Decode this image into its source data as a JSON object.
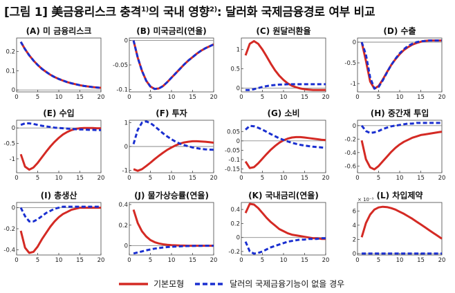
{
  "figure": {
    "title_prefix": "[그림 1] 美금융리스크 충격",
    "title_sup1": "1)",
    "title_mid": "의 국내 영향",
    "title_sup2": "2)",
    "title_suffix": ": 달러화 국제금융경로 여부 비교"
  },
  "colors": {
    "base": "#d42a24",
    "alt": "#1a2fd0",
    "zero": "#8a8a8a"
  },
  "legend": {
    "base_label": "기본모형",
    "alt_label": "달러의 국제금융기능이 없을 경우"
  },
  "chart_data": [
    {
      "type": "line",
      "title": "(A) 미 금융리스크",
      "xlim": [
        0,
        20
      ],
      "ylim": [
        -0.01,
        0.27
      ],
      "xticks": [
        0,
        5,
        10,
        15,
        20
      ],
      "yticks": [
        0,
        0.1,
        0.2
      ],
      "x": [
        1,
        2,
        3,
        4,
        5,
        6,
        7,
        8,
        9,
        10,
        11,
        12,
        13,
        14,
        15,
        16,
        17,
        18,
        19,
        20
      ],
      "series": [
        {
          "name": "기본모형",
          "values": [
            0.25,
            0.212,
            0.18,
            0.153,
            0.13,
            0.11,
            0.094,
            0.079,
            0.067,
            0.057,
            0.049,
            0.041,
            0.035,
            0.03,
            0.025,
            0.021,
            0.018,
            0.015,
            0.013,
            0.011
          ]
        },
        {
          "name": "달러의 국제금융기능이 없을 경우",
          "values": [
            0.25,
            0.212,
            0.18,
            0.153,
            0.13,
            0.11,
            0.094,
            0.079,
            0.067,
            0.057,
            0.049,
            0.041,
            0.035,
            0.03,
            0.025,
            0.021,
            0.018,
            0.015,
            0.013,
            0.011
          ]
        }
      ]
    },
    {
      "type": "line",
      "title": "(B) 미국금리(연율)",
      "xlim": [
        0,
        20
      ],
      "ylim": [
        -0.105,
        0.005
      ],
      "xticks": [
        0,
        5,
        10,
        15,
        20
      ],
      "yticks": [
        0,
        -0.05,
        -0.1
      ],
      "x": [
        1,
        2,
        3,
        4,
        5,
        6,
        7,
        8,
        9,
        10,
        11,
        12,
        13,
        14,
        15,
        16,
        17,
        18,
        19,
        20
      ],
      "series": [
        {
          "name": "기본모형",
          "values": [
            0.0,
            -0.035,
            -0.062,
            -0.082,
            -0.094,
            -0.099,
            -0.098,
            -0.093,
            -0.085,
            -0.076,
            -0.067,
            -0.058,
            -0.049,
            -0.041,
            -0.034,
            -0.027,
            -0.021,
            -0.016,
            -0.012,
            -0.008
          ]
        },
        {
          "name": "달러의 국제금융기능이 없을 경우",
          "values": [
            0.0,
            -0.035,
            -0.062,
            -0.082,
            -0.094,
            -0.099,
            -0.098,
            -0.093,
            -0.085,
            -0.076,
            -0.067,
            -0.058,
            -0.049,
            -0.041,
            -0.034,
            -0.027,
            -0.021,
            -0.016,
            -0.012,
            -0.008
          ]
        }
      ]
    },
    {
      "type": "line",
      "title": "(C) 원달러환율",
      "xlim": [
        0,
        20
      ],
      "ylim": [
        -0.1,
        1.3
      ],
      "xticks": [
        0,
        5,
        10,
        15,
        20
      ],
      "yticks": [
        0,
        0.5,
        1
      ],
      "x": [
        1,
        2,
        3,
        4,
        5,
        6,
        7,
        8,
        9,
        10,
        11,
        12,
        13,
        14,
        15,
        16,
        17,
        18,
        19,
        20
      ],
      "series": [
        {
          "name": "기본모형",
          "values": [
            0.85,
            1.15,
            1.22,
            1.15,
            1.0,
            0.82,
            0.63,
            0.46,
            0.32,
            0.21,
            0.12,
            0.06,
            0.02,
            -0.01,
            -0.03,
            -0.04,
            -0.05,
            -0.05,
            -0.05,
            -0.05
          ]
        },
        {
          "name": "달러의 국제금융기능이 없을 경우",
          "values": [
            -0.05,
            -0.05,
            -0.03,
            0.0,
            0.03,
            0.05,
            0.07,
            0.08,
            0.09,
            0.09,
            0.1,
            0.1,
            0.1,
            0.1,
            0.1,
            0.1,
            0.1,
            0.1,
            0.1,
            0.1
          ]
        }
      ]
    },
    {
      "type": "line",
      "title": "(D) 수출",
      "xlim": [
        0,
        20
      ],
      "ylim": [
        -1.2,
        0.1
      ],
      "xticks": [
        0,
        5,
        10,
        15,
        20
      ],
      "yticks": [
        0,
        -0.5,
        -1
      ],
      "x": [
        1,
        2,
        3,
        4,
        5,
        6,
        7,
        8,
        9,
        10,
        11,
        12,
        13,
        14,
        15,
        16,
        17,
        18,
        19,
        20
      ],
      "series": [
        {
          "name": "기본모형",
          "values": [
            0.0,
            -0.45,
            -0.95,
            -1.12,
            -1.06,
            -0.9,
            -0.72,
            -0.55,
            -0.41,
            -0.29,
            -0.19,
            -0.12,
            -0.06,
            -0.02,
            0.01,
            0.03,
            0.04,
            0.04,
            0.04,
            0.04
          ]
        },
        {
          "name": "달러의 국제금융기능이 없을 경우",
          "values": [
            0.0,
            -0.3,
            -0.85,
            -1.12,
            -1.08,
            -0.92,
            -0.73,
            -0.55,
            -0.4,
            -0.27,
            -0.17,
            -0.09,
            -0.04,
            0.0,
            0.02,
            0.03,
            0.04,
            0.04,
            0.04,
            0.04
          ]
        }
      ]
    },
    {
      "type": "line",
      "title": "(E) 수입",
      "xlim": [
        0,
        20
      ],
      "ylim": [
        -1.45,
        0.25
      ],
      "xticks": [
        0,
        5,
        10,
        15,
        20
      ],
      "yticks": [
        0,
        -0.5,
        -1
      ],
      "x": [
        1,
        2,
        3,
        4,
        5,
        6,
        7,
        8,
        9,
        10,
        11,
        12,
        13,
        14,
        15,
        16,
        17,
        18,
        19,
        20
      ],
      "series": [
        {
          "name": "기본모형",
          "values": [
            -0.85,
            -1.25,
            -1.35,
            -1.28,
            -1.13,
            -0.95,
            -0.77,
            -0.6,
            -0.45,
            -0.32,
            -0.21,
            -0.13,
            -0.07,
            -0.03,
            -0.01,
            0.0,
            0.0,
            0.0,
            -0.01,
            -0.01
          ]
        },
        {
          "name": "달러의 국제금융기능이 없을 경우",
          "values": [
            0.1,
            0.15,
            0.15,
            0.13,
            0.1,
            0.07,
            0.05,
            0.03,
            0.01,
            0.0,
            -0.01,
            -0.02,
            -0.03,
            -0.04,
            -0.05,
            -0.05,
            -0.06,
            -0.06,
            -0.07,
            -0.07
          ]
        }
      ]
    },
    {
      "type": "line",
      "title": "(F) 투자",
      "xlim": [
        0,
        20
      ],
      "ylim": [
        -1.1,
        1.1
      ],
      "xticks": [
        0,
        5,
        10,
        15,
        20
      ],
      "yticks": [
        1,
        0,
        -1
      ],
      "x": [
        1,
        2,
        3,
        4,
        5,
        6,
        7,
        8,
        9,
        10,
        11,
        12,
        13,
        14,
        15,
        16,
        17,
        18,
        19,
        20
      ],
      "series": [
        {
          "name": "기본모형",
          "values": [
            -0.95,
            -1.02,
            -0.95,
            -0.82,
            -0.68,
            -0.53,
            -0.39,
            -0.26,
            -0.14,
            -0.04,
            0.05,
            0.12,
            0.17,
            0.2,
            0.22,
            0.22,
            0.21,
            0.2,
            0.18,
            0.16
          ]
        },
        {
          "name": "달러의 국제금융기능이 없을 경우",
          "values": [
            0.1,
            0.7,
            1.0,
            1.05,
            0.98,
            0.85,
            0.7,
            0.55,
            0.42,
            0.3,
            0.2,
            0.12,
            0.06,
            0.01,
            -0.04,
            -0.07,
            -0.1,
            -0.12,
            -0.13,
            -0.14
          ]
        }
      ]
    },
    {
      "type": "line",
      "title": "(G) 소비",
      "xlim": [
        0,
        20
      ],
      "ylim": [
        -0.17,
        0.11
      ],
      "xticks": [
        0,
        5,
        10,
        15,
        20
      ],
      "yticks": [
        0.05,
        0,
        -0.05,
        -0.1,
        -0.15
      ],
      "x": [
        1,
        2,
        3,
        4,
        5,
        6,
        7,
        8,
        9,
        10,
        11,
        12,
        13,
        14,
        15,
        16,
        17,
        18,
        19,
        20
      ],
      "series": [
        {
          "name": "기본모형",
          "values": [
            -0.11,
            -0.145,
            -0.14,
            -0.12,
            -0.095,
            -0.07,
            -0.047,
            -0.027,
            -0.01,
            0.003,
            0.012,
            0.018,
            0.02,
            0.02,
            0.018,
            0.015,
            0.012,
            0.009,
            0.006,
            0.004
          ]
        },
        {
          "name": "달러의 국제금융기능이 없을 경우",
          "values": [
            0.06,
            0.08,
            0.078,
            0.07,
            0.06,
            0.048,
            0.036,
            0.025,
            0.014,
            0.005,
            -0.003,
            -0.01,
            -0.016,
            -0.021,
            -0.025,
            -0.028,
            -0.031,
            -0.033,
            -0.035,
            -0.037
          ]
        }
      ]
    },
    {
      "type": "line",
      "title": "(H) 중간재 투입",
      "xlim": [
        0,
        20
      ],
      "ylim": [
        -0.7,
        0.08
      ],
      "xticks": [
        0,
        5,
        10,
        15,
        20
      ],
      "yticks": [
        0,
        -0.2,
        -0.4,
        -0.6
      ],
      "x": [
        1,
        2,
        3,
        4,
        5,
        6,
        7,
        8,
        9,
        10,
        11,
        12,
        13,
        14,
        15,
        16,
        17,
        18,
        19,
        20
      ],
      "series": [
        {
          "name": "기본모형",
          "values": [
            -0.22,
            -0.5,
            -0.62,
            -0.65,
            -0.6,
            -0.53,
            -0.46,
            -0.39,
            -0.33,
            -0.28,
            -0.24,
            -0.21,
            -0.18,
            -0.16,
            -0.14,
            -0.13,
            -0.12,
            -0.11,
            -0.1,
            -0.09
          ]
        },
        {
          "name": "달러의 국제금융기능이 없을 경우",
          "values": [
            0.0,
            -0.08,
            -0.11,
            -0.1,
            -0.08,
            -0.05,
            -0.03,
            -0.01,
            0.0,
            0.01,
            0.02,
            0.03,
            0.03,
            0.04,
            0.04,
            0.04,
            0.04,
            0.04,
            0.04,
            0.04
          ]
        }
      ]
    },
    {
      "type": "line",
      "title": "(I) 총생산",
      "xlim": [
        0,
        20
      ],
      "ylim": [
        -0.45,
        0.05
      ],
      "xticks": [
        0,
        5,
        10,
        15,
        20
      ],
      "yticks": [
        0,
        -0.2,
        -0.4
      ],
      "x": [
        1,
        2,
        3,
        4,
        5,
        6,
        7,
        8,
        9,
        10,
        11,
        12,
        13,
        14,
        15,
        16,
        17,
        18,
        19,
        20
      ],
      "series": [
        {
          "name": "기본모형",
          "values": [
            -0.22,
            -0.38,
            -0.43,
            -0.42,
            -0.37,
            -0.3,
            -0.24,
            -0.18,
            -0.13,
            -0.09,
            -0.06,
            -0.04,
            -0.02,
            -0.01,
            0.0,
            0.0,
            0.0,
            0.0,
            0.0,
            0.0
          ]
        },
        {
          "name": "달러의 국제금융기능이 없을 경우",
          "values": [
            0.0,
            -0.08,
            -0.13,
            -0.13,
            -0.11,
            -0.08,
            -0.05,
            -0.03,
            -0.01,
            0.0,
            0.01,
            0.01,
            0.01,
            0.01,
            0.01,
            0.01,
            0.01,
            0.01,
            0.01,
            0.01
          ]
        }
      ]
    },
    {
      "type": "line",
      "title": "(J) 물가상승률(연율)",
      "xlim": [
        0,
        20
      ],
      "ylim": [
        -0.09,
        0.42
      ],
      "xticks": [
        0,
        5,
        10,
        15,
        20
      ],
      "yticks": [
        0.4,
        0.2,
        0
      ],
      "x": [
        1,
        2,
        3,
        4,
        5,
        6,
        7,
        8,
        9,
        10,
        11,
        12,
        13,
        14,
        15,
        16,
        17,
        18,
        19,
        20
      ],
      "series": [
        {
          "name": "기본모형",
          "values": [
            0.35,
            0.22,
            0.14,
            0.09,
            0.055,
            0.035,
            0.022,
            0.014,
            0.009,
            0.006,
            0.004,
            0.002,
            0.001,
            0.0,
            0.0,
            0.0,
            0.0,
            0.0,
            0.0,
            0.0
          ]
        },
        {
          "name": "달러의 국제금융기능이 없을 경우",
          "values": [
            -0.075,
            -0.065,
            -0.055,
            -0.045,
            -0.036,
            -0.028,
            -0.022,
            -0.017,
            -0.013,
            -0.01,
            -0.008,
            -0.006,
            -0.004,
            -0.003,
            -0.002,
            -0.001,
            -0.001,
            0.0,
            0.0,
            0.0
          ]
        }
      ]
    },
    {
      "type": "line",
      "title": "(K) 국내금리(연율)",
      "xlim": [
        0,
        20
      ],
      "ylim": [
        -0.25,
        0.5
      ],
      "xticks": [
        0,
        5,
        10,
        15,
        20
      ],
      "yticks": [
        0.4,
        0.2,
        0,
        -0.2
      ],
      "x": [
        1,
        2,
        3,
        4,
        5,
        6,
        7,
        8,
        9,
        10,
        11,
        12,
        13,
        14,
        15,
        16,
        17,
        18,
        19,
        20
      ],
      "series": [
        {
          "name": "기본모형",
          "values": [
            0.35,
            0.48,
            0.47,
            0.42,
            0.35,
            0.28,
            0.22,
            0.17,
            0.12,
            0.09,
            0.06,
            0.04,
            0.03,
            0.02,
            0.01,
            0.0,
            -0.01,
            -0.01,
            -0.02,
            -0.02
          ]
        },
        {
          "name": "달러의 국제금융기능이 없을 경우",
          "values": [
            -0.06,
            -0.2,
            -0.23,
            -0.22,
            -0.2,
            -0.17,
            -0.14,
            -0.12,
            -0.1,
            -0.08,
            -0.06,
            -0.05,
            -0.04,
            -0.03,
            -0.03,
            -0.02,
            -0.02,
            -0.02,
            -0.01,
            -0.01
          ]
        }
      ]
    },
    {
      "type": "line",
      "title": "(L) 차입제약",
      "xlim": [
        0,
        20
      ],
      "ylim": [
        -0.2,
        7.2
      ],
      "xticks": [
        0,
        5,
        10,
        15,
        20
      ],
      "yticks": [
        6,
        4,
        2,
        0
      ],
      "y_exponent_label": "× 10⁻⁵",
      "x": [
        1,
        2,
        3,
        4,
        5,
        6,
        7,
        8,
        9,
        10,
        11,
        12,
        13,
        14,
        15,
        16,
        17,
        18,
        19,
        20
      ],
      "series": [
        {
          "name": "기본모형",
          "values": [
            2.3,
            4.3,
            5.5,
            6.2,
            6.5,
            6.6,
            6.55,
            6.4,
            6.2,
            5.9,
            5.6,
            5.25,
            4.9,
            4.5,
            4.1,
            3.7,
            3.3,
            2.9,
            2.5,
            2.1
          ]
        },
        {
          "name": "달러의 국제금융기능이 없을 경우",
          "values": [
            0.0,
            0.0,
            0.0,
            0.0,
            0.0,
            0.0,
            0.0,
            0.0,
            0.0,
            0.0,
            0.0,
            0.0,
            0.0,
            0.0,
            0.0,
            0.0,
            0.0,
            0.0,
            0.0,
            0.0
          ]
        }
      ]
    }
  ]
}
